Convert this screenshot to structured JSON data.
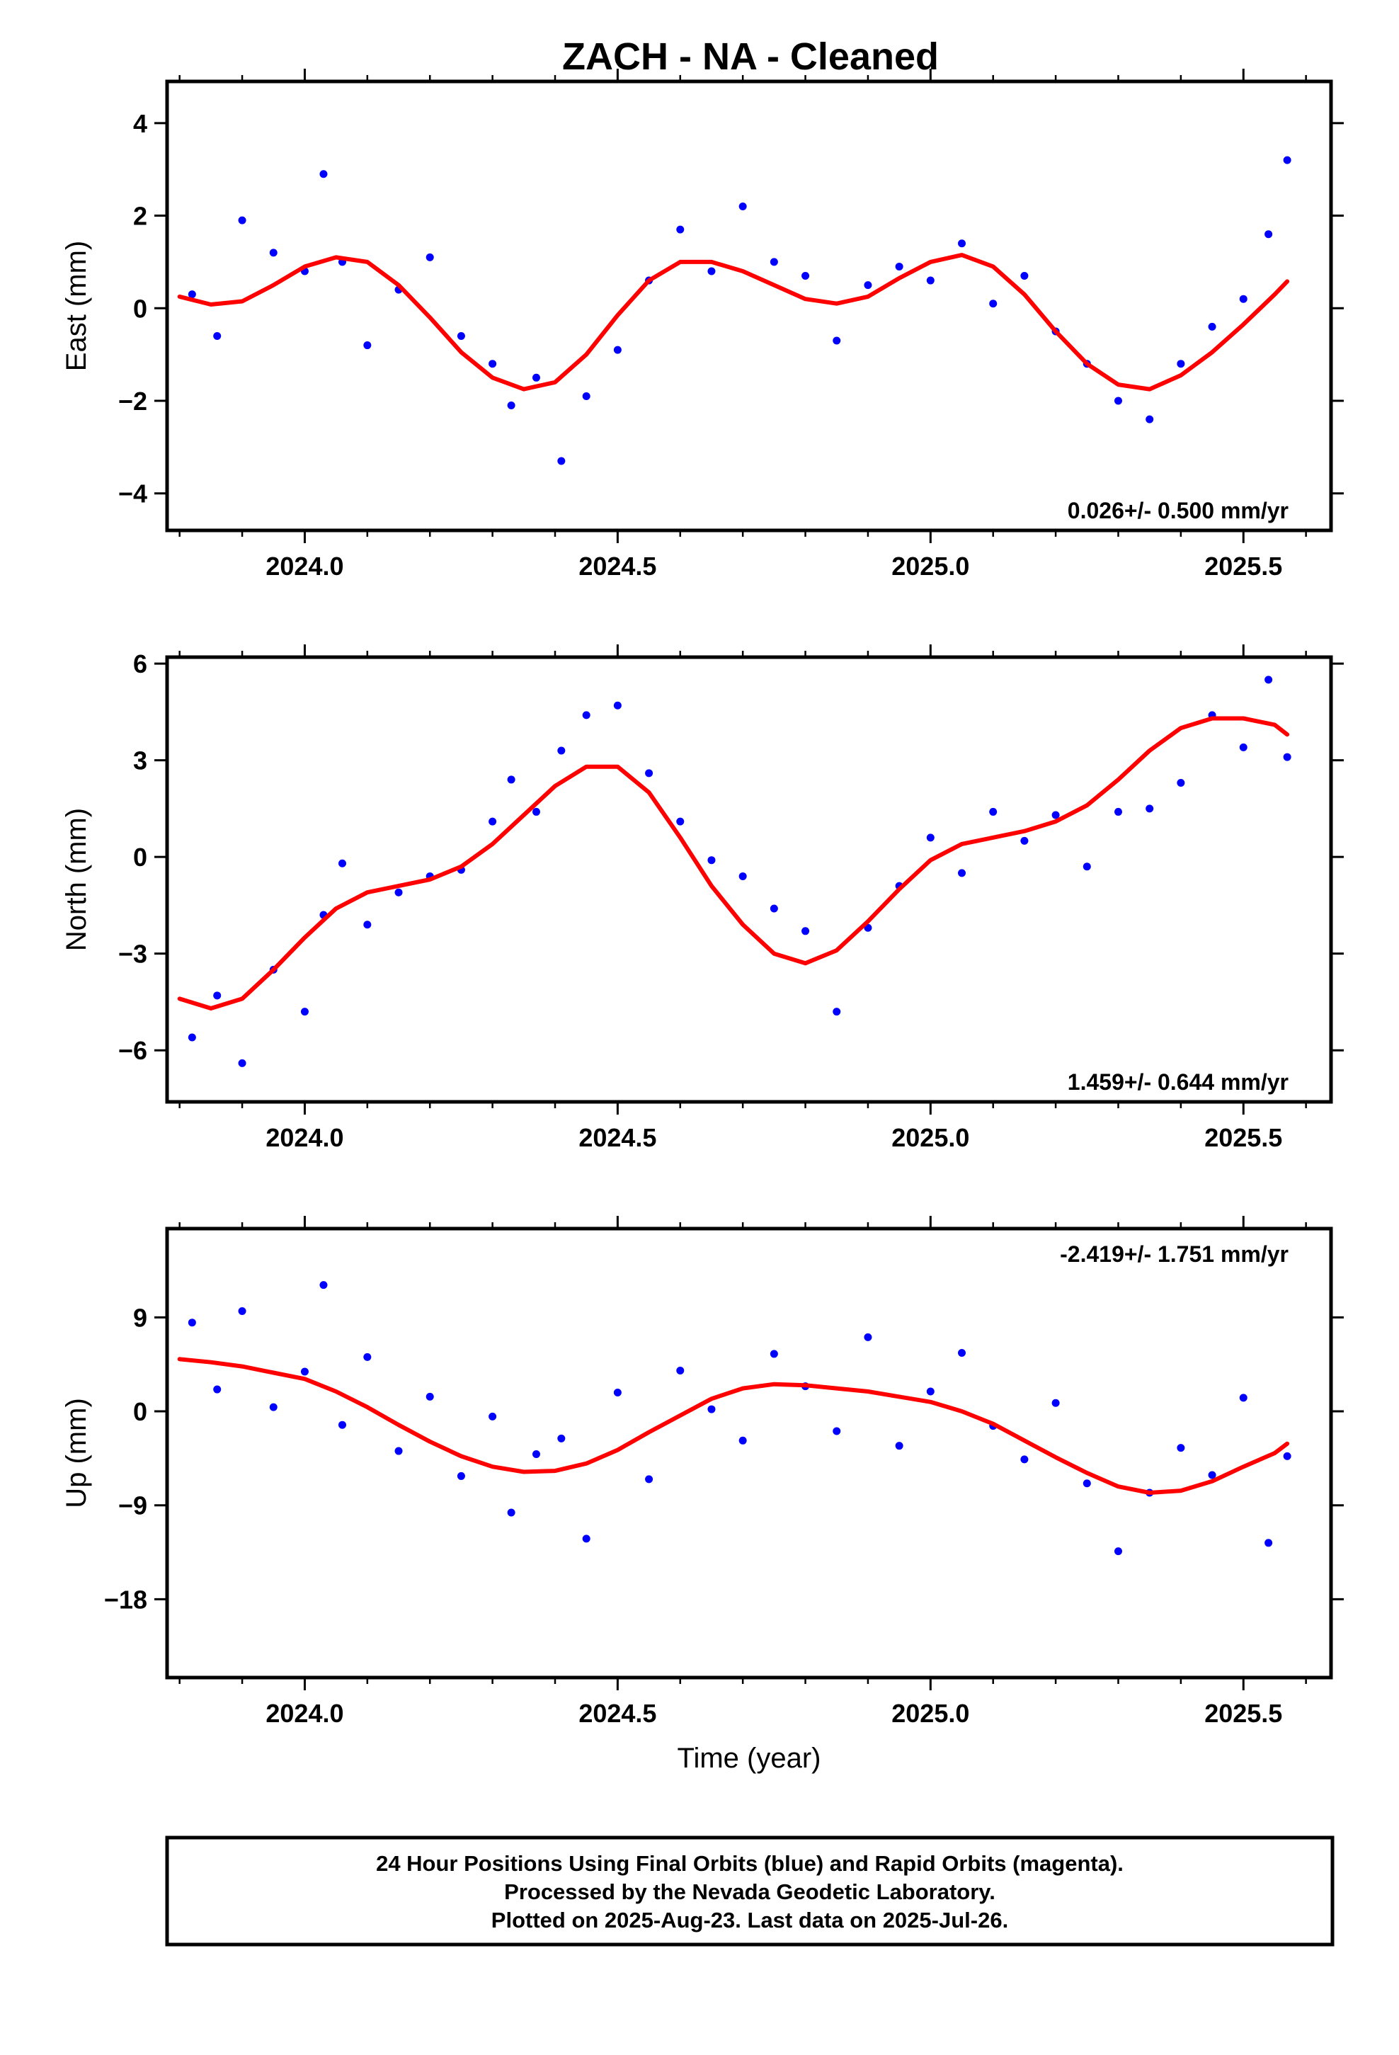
{
  "page_title": "ZACH  - NA - Cleaned",
  "footer": {
    "lines": [
      "24 Hour Positions Using Final Orbits (blue) and Rapid Orbits (magenta).",
      "Processed by the Nevada Geodetic Laboratory.",
      "Plotted on 2025-Aug-23. Last data on 2025-Jul-26."
    ]
  },
  "colors": {
    "final_orbits": "#0000ff",
    "rapid_orbits": "#ff00ff",
    "model_fit": "#ff0000"
  },
  "chart_data": [
    {
      "type": "scatter",
      "ylabel": "East (mm)",
      "xlabel": "",
      "xlim": [
        2023.78,
        2025.64
      ],
      "ylim": [
        -4.8,
        4.9
      ],
      "xticks": [
        2024.0,
        2024.5,
        2025.0,
        2025.5
      ],
      "xtick_labels": [
        "2024.0",
        "2024.5",
        "2025.0",
        "2025.5"
      ],
      "yticks": [
        -4,
        -2,
        0,
        2,
        4
      ],
      "ytick_labels": [
        "−4",
        "−2",
        "0",
        "2",
        "4"
      ],
      "rate_text": "0.026+/- 0.500 mm/yr",
      "rate_position": "bottom-right",
      "series": [
        {
          "role": "observations",
          "x": [
            2023.82,
            2023.86,
            2023.9,
            2023.95,
            2024.0,
            2024.03,
            2024.06,
            2024.1,
            2024.15,
            2024.2,
            2024.25,
            2024.3,
            2024.33,
            2024.37,
            2024.41,
            2024.45,
            2024.5,
            2024.55,
            2024.6,
            2024.65,
            2024.7,
            2024.75,
            2024.8,
            2024.85,
            2024.9,
            2024.95,
            2025.0,
            2025.05,
            2025.1,
            2025.15,
            2025.2,
            2025.25,
            2025.3,
            2025.35,
            2025.4,
            2025.45,
            2025.5,
            2025.54,
            2025.57
          ],
          "y": [
            0.3,
            -0.6,
            1.9,
            1.2,
            0.8,
            2.9,
            1.0,
            -0.8,
            0.4,
            1.1,
            -0.6,
            -1.2,
            -2.1,
            -1.5,
            -3.3,
            -1.9,
            -0.9,
            0.6,
            1.7,
            0.8,
            2.2,
            1.0,
            0.7,
            -0.7,
            0.5,
            0.9,
            0.6,
            1.4,
            0.1,
            0.7,
            -0.5,
            -1.2,
            -2.0,
            -2.4,
            -1.2,
            -0.4,
            0.2,
            1.6,
            3.2
          ]
        },
        {
          "role": "model_fit",
          "x": [
            2023.8,
            2023.85,
            2023.9,
            2023.95,
            2024.0,
            2024.05,
            2024.1,
            2024.15,
            2024.2,
            2024.25,
            2024.3,
            2024.35,
            2024.4,
            2024.45,
            2024.5,
            2024.55,
            2024.6,
            2024.65,
            2024.7,
            2024.75,
            2024.8,
            2024.85,
            2024.9,
            2024.95,
            2025.0,
            2025.05,
            2025.1,
            2025.15,
            2025.2,
            2025.25,
            2025.3,
            2025.35,
            2025.4,
            2025.45,
            2025.5,
            2025.55,
            2025.57
          ],
          "y": [
            0.25,
            0.08,
            0.15,
            0.5,
            0.9,
            1.1,
            1.0,
            0.5,
            -0.2,
            -0.95,
            -1.5,
            -1.75,
            -1.6,
            -1.0,
            -0.15,
            0.6,
            1.0,
            1.0,
            0.8,
            0.5,
            0.2,
            0.1,
            0.25,
            0.65,
            1.0,
            1.15,
            0.9,
            0.3,
            -0.5,
            -1.2,
            -1.65,
            -1.75,
            -1.45,
            -0.95,
            -0.35,
            0.3,
            0.58
          ]
        }
      ]
    },
    {
      "type": "scatter",
      "ylabel": "North (mm)",
      "xlabel": "",
      "xlim": [
        2023.78,
        2025.64
      ],
      "ylim": [
        -7.6,
        6.2
      ],
      "xticks": [
        2024.0,
        2024.5,
        2025.0,
        2025.5
      ],
      "xtick_labels": [
        "2024.0",
        "2024.5",
        "2025.0",
        "2025.5"
      ],
      "yticks": [
        -6,
        -3,
        0,
        3,
        6
      ],
      "ytick_labels": [
        "−6",
        "−3",
        "0",
        "3",
        "6"
      ],
      "rate_text": "1.459+/- 0.644 mm/yr",
      "rate_position": "bottom-right",
      "series": [
        {
          "role": "observations",
          "x": [
            2023.82,
            2023.86,
            2023.9,
            2023.95,
            2024.0,
            2024.03,
            2024.06,
            2024.1,
            2024.15,
            2024.2,
            2024.25,
            2024.3,
            2024.33,
            2024.37,
            2024.41,
            2024.45,
            2024.5,
            2024.55,
            2024.6,
            2024.65,
            2024.7,
            2024.75,
            2024.8,
            2024.85,
            2024.9,
            2024.95,
            2025.0,
            2025.05,
            2025.1,
            2025.15,
            2025.2,
            2025.25,
            2025.3,
            2025.35,
            2025.4,
            2025.45,
            2025.5,
            2025.54,
            2025.57
          ],
          "y": [
            -5.6,
            -4.3,
            -6.4,
            -3.5,
            -4.8,
            -1.8,
            -0.2,
            -2.1,
            -1.1,
            -0.6,
            -0.4,
            1.1,
            2.4,
            1.4,
            3.3,
            4.4,
            4.7,
            2.6,
            1.1,
            -0.1,
            -0.6,
            -1.6,
            -2.3,
            -4.8,
            -2.2,
            -0.9,
            0.6,
            -0.5,
            1.4,
            0.5,
            1.3,
            -0.3,
            1.4,
            1.5,
            2.3,
            4.4,
            3.4,
            5.5,
            3.1
          ]
        },
        {
          "role": "model_fit",
          "x": [
            2023.8,
            2023.85,
            2023.9,
            2023.95,
            2024.0,
            2024.05,
            2024.1,
            2024.15,
            2024.2,
            2024.25,
            2024.3,
            2024.35,
            2024.4,
            2024.45,
            2024.5,
            2024.55,
            2024.6,
            2024.65,
            2024.7,
            2024.75,
            2024.8,
            2024.85,
            2024.9,
            2024.95,
            2025.0,
            2025.05,
            2025.1,
            2025.15,
            2025.2,
            2025.25,
            2025.3,
            2025.35,
            2025.4,
            2025.45,
            2025.5,
            2025.55,
            2025.57
          ],
          "y": [
            -4.4,
            -4.7,
            -4.4,
            -3.5,
            -2.5,
            -1.6,
            -1.1,
            -0.9,
            -0.7,
            -0.3,
            0.4,
            1.3,
            2.2,
            2.8,
            2.8,
            2.0,
            0.6,
            -0.9,
            -2.1,
            -3.0,
            -3.3,
            -2.9,
            -2.0,
            -1.0,
            -0.1,
            0.4,
            0.6,
            0.8,
            1.1,
            1.6,
            2.4,
            3.3,
            4.0,
            4.3,
            4.3,
            4.1,
            3.8
          ]
        }
      ]
    },
    {
      "type": "scatter",
      "ylabel": "Up (mm)",
      "xlabel": "Time (year)",
      "xlim": [
        2023.78,
        2025.64
      ],
      "ylim": [
        -25.5,
        17.5
      ],
      "xticks": [
        2024.0,
        2024.5,
        2025.0,
        2025.5
      ],
      "xtick_labels": [
        "2024.0",
        "2024.5",
        "2025.0",
        "2025.5"
      ],
      "yticks": [
        -18,
        -9,
        0,
        9
      ],
      "ytick_labels": [
        "−18",
        "−9",
        "0",
        "9"
      ],
      "rate_text": "-2.419+/- 1.751 mm/yr",
      "rate_position": "top-right",
      "series": [
        {
          "role": "observations",
          "x": [
            2023.82,
            2023.86,
            2023.9,
            2023.95,
            2024.0,
            2024.03,
            2024.06,
            2024.1,
            2024.15,
            2024.2,
            2024.25,
            2024.3,
            2024.33,
            2024.37,
            2024.41,
            2024.45,
            2024.5,
            2024.55,
            2024.6,
            2024.65,
            2024.7,
            2024.75,
            2024.8,
            2024.85,
            2024.9,
            2024.95,
            2025.0,
            2025.05,
            2025.1,
            2025.15,
            2025.2,
            2025.25,
            2025.3,
            2025.35,
            2025.4,
            2025.45,
            2025.5,
            2025.54,
            2025.57
          ],
          "y": [
            8.5,
            2.1,
            9.6,
            0.4,
            3.8,
            12.1,
            -1.3,
            5.2,
            -3.8,
            1.4,
            -6.2,
            -0.5,
            -9.7,
            -4.1,
            -2.6,
            -12.2,
            1.8,
            -6.5,
            3.9,
            0.2,
            -2.8,
            5.5,
            2.4,
            -1.9,
            7.1,
            -3.3,
            1.9,
            5.6,
            -1.4,
            -4.6,
            0.8,
            -6.9,
            -13.4,
            -7.8,
            -3.5,
            -6.1,
            1.3,
            -12.6,
            -4.3
          ]
        },
        {
          "role": "model_fit",
          "x": [
            2023.8,
            2023.85,
            2023.9,
            2023.95,
            2024.0,
            2024.05,
            2024.1,
            2024.15,
            2024.2,
            2024.25,
            2024.3,
            2024.35,
            2024.4,
            2024.45,
            2024.5,
            2024.55,
            2024.6,
            2024.65,
            2024.7,
            2024.75,
            2024.8,
            2024.85,
            2024.9,
            2024.95,
            2025.0,
            2025.05,
            2025.1,
            2025.15,
            2025.2,
            2025.25,
            2025.3,
            2025.35,
            2025.4,
            2025.45,
            2025.5,
            2025.55,
            2025.57
          ],
          "y": [
            5.0,
            4.7,
            4.3,
            3.7,
            3.1,
            1.9,
            0.4,
            -1.3,
            -2.9,
            -4.3,
            -5.3,
            -5.8,
            -5.7,
            -5.0,
            -3.7,
            -2.0,
            -0.4,
            1.2,
            2.2,
            2.6,
            2.5,
            2.2,
            1.9,
            1.4,
            0.9,
            0.0,
            -1.2,
            -2.8,
            -4.4,
            -5.9,
            -7.2,
            -7.8,
            -7.6,
            -6.7,
            -5.3,
            -4.0,
            -3.1
          ]
        }
      ]
    }
  ]
}
